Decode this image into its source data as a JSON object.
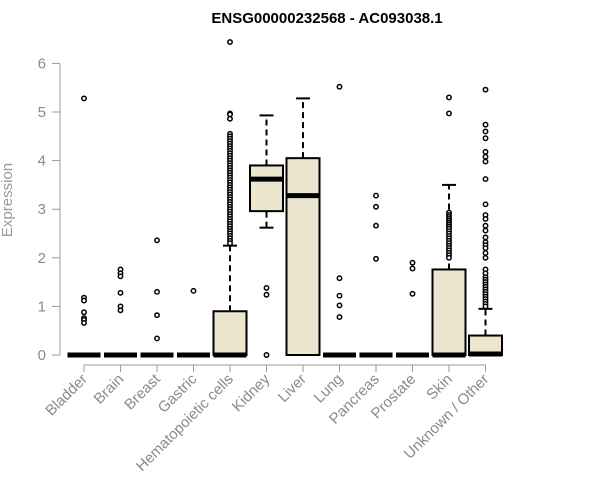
{
  "chart_data": {
    "type": "box",
    "title": "ENSG00000232568 - AC093038.1",
    "xlabel": "",
    "ylabel": "Expression",
    "ylim": [
      0,
      6.5
    ],
    "yticks": [
      0,
      1,
      2,
      3,
      4,
      5,
      6
    ],
    "grid": false,
    "colors": {
      "box_fill": "#ede6cf",
      "box_stroke": "#000000",
      "axis": "#9a9a9a",
      "tick_text": "#8a8a8a",
      "title": "#000000"
    },
    "categories": [
      "Bladder",
      "Brain",
      "Breast",
      "Gastric",
      "Hematopoietic cells",
      "Kidney",
      "Liver",
      "Lung",
      "Pancreas",
      "Prostate",
      "Skin",
      "Unknown / Other"
    ],
    "boxes": [
      {
        "category": "Bladder",
        "min": 0,
        "q1": 0,
        "median": 0,
        "q3": 0,
        "max": 0,
        "outliers": [
          5.28,
          1.18,
          1.12,
          0.88,
          0.76,
          0.72,
          0.66
        ]
      },
      {
        "category": "Brain",
        "min": 0,
        "q1": 0,
        "median": 0,
        "q3": 0,
        "max": 0,
        "outliers": [
          1.76,
          1.68,
          1.62,
          1.28,
          1.0,
          0.92
        ]
      },
      {
        "category": "Breast",
        "min": 0,
        "q1": 0,
        "median": 0,
        "q3": 0,
        "max": 0,
        "outliers": [
          2.36,
          1.3,
          0.82,
          0.34
        ]
      },
      {
        "category": "Gastric",
        "min": 0,
        "q1": 0,
        "median": 0,
        "q3": 0,
        "max": 0,
        "outliers": [
          1.32
        ]
      },
      {
        "category": "Hematopoietic cells",
        "min": 0,
        "q1": 0,
        "median": 0,
        "q3": 0.9,
        "max": 2.25,
        "outliers": [
          6.44,
          4.97,
          4.95,
          4.86,
          4.55,
          4.5,
          4.45,
          4.4,
          4.35,
          4.3,
          4.25,
          4.2,
          4.15,
          4.1,
          4.05,
          4.0,
          3.95,
          3.9,
          3.85,
          3.8,
          3.75,
          3.7,
          3.65,
          3.6,
          3.55,
          3.5,
          3.45,
          3.4,
          3.35,
          3.3,
          3.25,
          3.2,
          3.15,
          3.1,
          3.05,
          3.0,
          2.95,
          2.9,
          2.85,
          2.8,
          2.75,
          2.7,
          2.65,
          2.6,
          2.55,
          2.5,
          2.45,
          2.4,
          2.35,
          2.3
        ]
      },
      {
        "category": "Kidney",
        "min": 2.62,
        "q1": 2.96,
        "median": 3.62,
        "q3": 3.9,
        "max": 4.93,
        "outliers": [
          1.38,
          1.24,
          0.0
        ]
      },
      {
        "category": "Liver",
        "min": 0,
        "q1": 0,
        "median": 3.28,
        "q3": 4.05,
        "max": 5.28,
        "outliers": []
      },
      {
        "category": "Lung",
        "min": 0,
        "q1": 0,
        "median": 0,
        "q3": 0,
        "max": 0,
        "outliers": [
          5.52,
          1.58,
          1.22,
          1.02,
          0.78
        ]
      },
      {
        "category": "Pancreas",
        "min": 0,
        "q1": 0,
        "median": 0,
        "q3": 0,
        "max": 0,
        "outliers": [
          3.28,
          3.05,
          2.66,
          1.98
        ]
      },
      {
        "category": "Prostate",
        "min": 0,
        "q1": 0,
        "median": 0,
        "q3": 0,
        "max": 0,
        "outliers": [
          1.9,
          1.78,
          1.26
        ]
      },
      {
        "category": "Skin",
        "min": 0,
        "q1": 0,
        "median": 0,
        "q3": 1.76,
        "max": 3.5,
        "outliers": [
          5.3,
          4.97,
          2.93,
          2.88,
          2.84,
          2.8,
          2.76,
          2.72,
          2.68,
          2.64,
          2.6,
          2.55,
          2.5,
          2.45,
          2.4,
          2.35,
          2.3,
          2.25,
          2.2,
          2.15,
          2.1,
          2.05,
          2.0
        ]
      },
      {
        "category": "Unknown / Other",
        "min": 0,
        "q1": 0,
        "median": 0.02,
        "q3": 0.4,
        "max": 0.95,
        "outliers": [
          5.46,
          4.74,
          4.6,
          4.46,
          4.18,
          4.08,
          3.98,
          3.62,
          3.1,
          2.88,
          2.8,
          2.66,
          2.56,
          2.42,
          2.32,
          2.26,
          2.2,
          2.1,
          2.0,
          1.76,
          1.68,
          1.6,
          1.55,
          1.5,
          1.45,
          1.4,
          1.35,
          1.3,
          1.25,
          1.2,
          1.15,
          1.1,
          1.05,
          1.0
        ]
      }
    ]
  }
}
